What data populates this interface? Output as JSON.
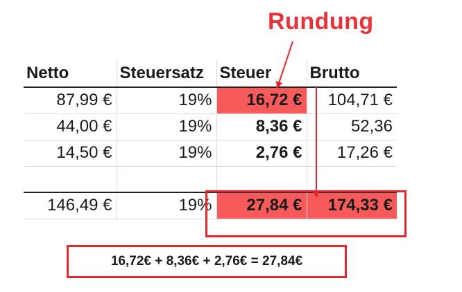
{
  "annotation_title": "Rundung",
  "table": {
    "headers": [
      "Netto",
      "Steuersatz",
      "Steuer",
      "Brutto"
    ],
    "rows": [
      {
        "netto": "87,99 €",
        "satz": "19%",
        "steuer": "16,72 €",
        "brutto": "104,71 €"
      },
      {
        "netto": "44,00 €",
        "satz": "19%",
        "steuer": "8,36 €",
        "brutto": "52,36"
      },
      {
        "netto": "14,50 €",
        "satz": "19%",
        "steuer": "2,76 €",
        "brutto": "17,26 €"
      }
    ],
    "total": {
      "netto": "146,49 €",
      "satz": "19%",
      "steuer": "27,84 €",
      "brutto": "174,33 €"
    }
  },
  "formula": "16,72€ + 8,36€ + 2,76€ = 27,84€",
  "colors": {
    "accent": "#e8323a",
    "highlight": "#f75a5a"
  }
}
